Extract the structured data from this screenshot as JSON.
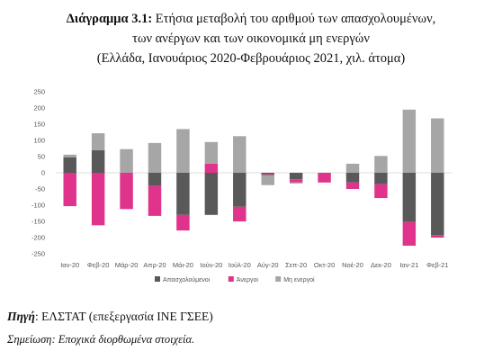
{
  "title": {
    "lead": "Διάγραμμα 3.1:",
    "line1": "Ετήσια μεταβολή του αριθμού των απασχολουμένων,",
    "line2": "των ανέργων και των οικονομικά μη ενεργών",
    "line3": "(Ελλάδα, Ιανουάριος 2020-Φεβρουάριος 2021, χιλ. άτομα)"
  },
  "footer": {
    "source_label": "Πηγή",
    "source_text": ": ΕΛΣΤΑΤ (επεξεργασία ΙΝΕ ΓΣΕΕ)",
    "note": "Σημείωση: Εποχικά διορθωμένα στοιχεία."
  },
  "chart_data": {
    "type": "bar",
    "stacked": true,
    "categories": [
      "Ιαν-20",
      "Φεβ-20",
      "Μάρ-20",
      "Απρ-20",
      "Μάι-20",
      "Ιούν-20",
      "Ιούλ-20",
      "Αύγ-20",
      "Σεπ-20",
      "Οκτ-20",
      "Νοέ-20",
      "Δεκ-20",
      "Ιαν-21",
      "Φεβ-21"
    ],
    "series": [
      {
        "name": "Απασχολούμενοι",
        "color": "#595959",
        "values": [
          48,
          70,
          0,
          -40,
          -130,
          -130,
          -105,
          -5,
          -20,
          0,
          -30,
          -35,
          -152,
          -192
        ]
      },
      {
        "name": "Άνεργοι",
        "color": "#e0338c",
        "values": [
          -103,
          -162,
          -112,
          -93,
          -48,
          28,
          -45,
          -3,
          -10,
          -30,
          -20,
          -43,
          -73,
          -8
        ]
      },
      {
        "name": "Μη ενεργοί",
        "color": "#a6a6a6",
        "values": [
          8,
          52,
          73,
          92,
          135,
          67,
          113,
          -30,
          -3,
          0,
          28,
          52,
          195,
          168
        ]
      }
    ],
    "ylim": [
      -250,
      250
    ],
    "yticks": [
      250,
      200,
      150,
      100,
      50,
      0,
      -50,
      -100,
      -150,
      -200,
      -250
    ],
    "legend_position": "bottom"
  }
}
